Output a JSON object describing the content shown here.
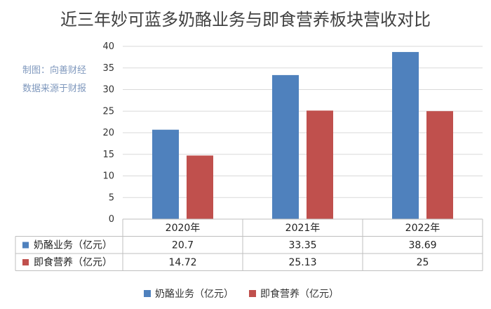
{
  "title": "近三年妙可蓝多奶酪业务与即食营养板块营收对比",
  "notes": [
    "制图：向善财经",
    "数据来源于财报"
  ],
  "colors": {
    "blue": "#4f81bd",
    "red": "#c0504d",
    "grid": "#d9d9d9",
    "border": "#bfbfbf"
  },
  "chart_data": {
    "type": "bar",
    "title": "近三年妙可蓝多奶酪业务与即食营养板块营收对比",
    "categories": [
      "2020年",
      "2021年",
      "2022年"
    ],
    "series": [
      {
        "name": "奶酪业务（亿元）",
        "color": "#4f81bd",
        "values": [
          20.7,
          33.35,
          38.69
        ],
        "labels": [
          "20.7",
          "33.35",
          "38.69"
        ]
      },
      {
        "name": "即食营养（亿元）",
        "color": "#c0504d",
        "values": [
          14.72,
          25.13,
          25
        ],
        "labels": [
          "14.72",
          "25.13",
          "25"
        ]
      }
    ],
    "ylim": [
      0,
      40
    ],
    "yticks": [
      0,
      5,
      10,
      15,
      20,
      25,
      30,
      35,
      40
    ],
    "grid": true,
    "legend": "bottom",
    "data_table": true
  }
}
